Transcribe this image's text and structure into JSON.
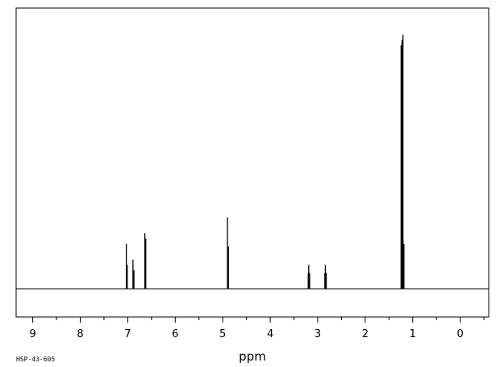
{
  "chart_data": {
    "type": "line",
    "title": "",
    "xlabel": "ppm",
    "ylabel": "",
    "xlim": [
      9.35,
      -0.6
    ],
    "x_reversed": true,
    "x_ticks": [
      9,
      8,
      7,
      6,
      5,
      4,
      3,
      2,
      1,
      0
    ],
    "x_tick_labels": [
      "9",
      "8",
      "7",
      "6",
      "5",
      "4",
      "3",
      "2",
      "1",
      "0"
    ],
    "y_relative_max": 100,
    "grid": false,
    "legend": "none",
    "series": [
      {
        "peaks": [
          {
            "ppm": 7.03,
            "height": 17
          },
          {
            "ppm": 7.01,
            "height": 9
          },
          {
            "ppm": 6.89,
            "height": 11
          },
          {
            "ppm": 6.87,
            "height": 7
          },
          {
            "ppm": 6.64,
            "height": 21
          },
          {
            "ppm": 6.62,
            "height": 19
          },
          {
            "ppm": 4.9,
            "height": 27
          },
          {
            "ppm": 4.88,
            "height": 16
          },
          {
            "ppm": 3.2,
            "height": 6
          },
          {
            "ppm": 3.19,
            "height": 9
          },
          {
            "ppm": 3.17,
            "height": 6
          },
          {
            "ppm": 2.85,
            "height": 6
          },
          {
            "ppm": 2.84,
            "height": 9
          },
          {
            "ppm": 2.82,
            "height": 6
          },
          {
            "ppm": 1.245,
            "height": 92
          },
          {
            "ppm": 1.225,
            "height": 94
          },
          {
            "ppm": 1.205,
            "height": 96
          },
          {
            "ppm": 1.185,
            "height": 17
          }
        ]
      }
    ],
    "colors": {
      "line": "#000000",
      "background": "#ffffff"
    }
  },
  "footer_label": "HSP-43-605"
}
